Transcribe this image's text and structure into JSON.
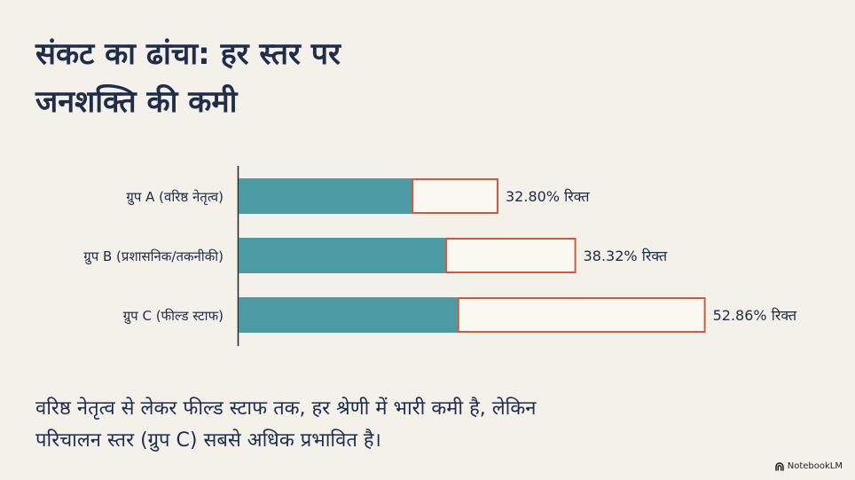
{
  "title": {
    "line1": "संकट का ढांचा: हर स्तर पर",
    "line2": "जनशक्ति की कमी"
  },
  "chart_data": {
    "type": "bar",
    "orientation": "horizontal",
    "stacked": true,
    "categories": [
      "ग्रुप A (वरिष्ठ नेतृत्व)",
      "ग्रुप B (प्रशासनिक/तकनीकी)",
      "ग्रुप C (फील्ड स्टाफ)"
    ],
    "series": [
      {
        "values": [
          67.2,
          61.68,
          47.14
        ],
        "color": "#4a9ba3"
      },
      {
        "values": [
          32.8,
          38.32,
          52.86
        ],
        "color": "#fbf8f2"
      }
    ],
    "totals_relative": [
      1.0,
      1.3,
      1.8
    ],
    "data_labels": [
      "32.80% रिक्त",
      "38.32% रिक्त",
      "52.86% रिक्त"
    ],
    "outline_color": "#cf5a43",
    "title": "",
    "xlabel": "",
    "ylabel": "",
    "grid": false,
    "legend": "none"
  },
  "summary": {
    "line1": "वरिष्ठ नेतृत्व से लेकर फील्ड स्टाफ तक, हर श्रेणी में भारी कमी है, लेकिन",
    "line2": "परिचालन स्तर (ग्रुप C) सबसे अधिक प्रभावित है।"
  },
  "brand": {
    "icon": "notebooklm-logo-icon",
    "label": "NotebookLM"
  }
}
